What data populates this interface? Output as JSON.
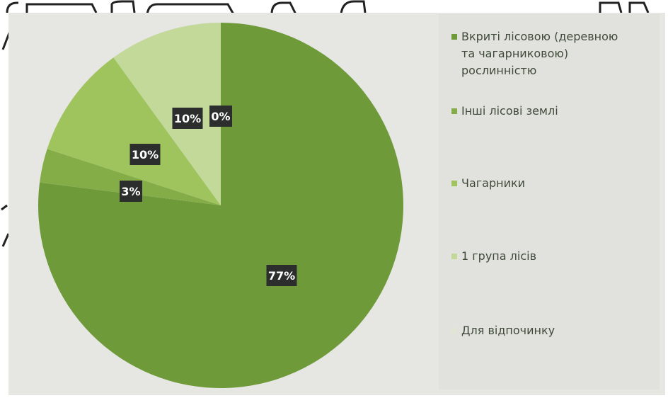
{
  "chart_data": {
    "type": "pie",
    "title": "",
    "slices": [
      {
        "label": "Вкриті лісовою (деревною та чагарниковою) рослинністю",
        "value": 77,
        "display": "77%",
        "color": "#6f9a3a"
      },
      {
        "label": "Інші лісові землі",
        "value": 3,
        "display": "3%",
        "color": "#84ad48"
      },
      {
        "label": "Чагарники",
        "value": 10,
        "display": "10%",
        "color": "#9fc45e"
      },
      {
        "label": "1 група лісів",
        "value": 10,
        "display": "10%",
        "color": "#c2d99a"
      },
      {
        "label": "Для відпочинку",
        "value": 0,
        "display": "0%",
        "color": "#e0e6d4"
      }
    ],
    "legend_position": "right"
  }
}
